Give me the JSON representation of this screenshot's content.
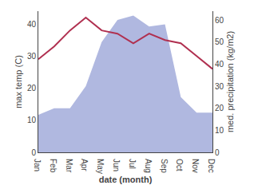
{
  "chart_data": {
    "type": "line",
    "xlabel": "date (month)",
    "ylabel": "max temp (C)",
    "y2label": "med. precipitation (kg/m2)",
    "categories": [
      "Jan",
      "Feb",
      "Mar",
      "Apr",
      "May",
      "Jun",
      "Jul",
      "Aug",
      "Sep",
      "Oct",
      "Nov",
      "Dec"
    ],
    "series": [
      {
        "type": "area",
        "axis": "y2",
        "color": "#b0b8e0",
        "values": [
          17,
          20,
          20,
          30,
          50,
          60,
          62,
          57,
          58,
          25,
          18,
          18
        ]
      },
      {
        "type": "line",
        "color": "#b03050",
        "values": [
          29,
          33,
          38,
          42,
          38,
          37,
          34,
          37,
          35,
          34,
          30,
          26
        ]
      }
    ],
    "ylim": [
      0,
      44
    ],
    "yticks": [
      0,
      10,
      20,
      30,
      40
    ],
    "y2lim": [
      0,
      64
    ],
    "y2ticks": [
      0,
      10,
      20,
      30,
      40,
      50,
      60
    ],
    "grid": false
  }
}
